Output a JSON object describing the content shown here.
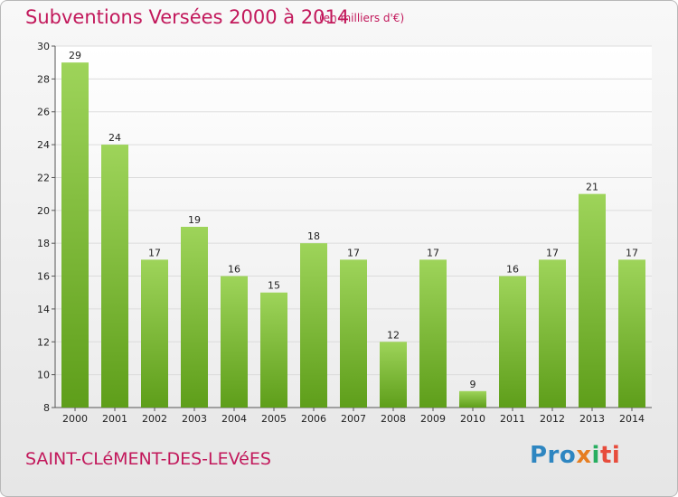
{
  "chart_data": {
    "type": "bar",
    "title": "Subventions Versées 2000 à 2014",
    "subtitle": "(en milliers d'€)",
    "categories": [
      "2000",
      "2001",
      "2002",
      "2003",
      "2004",
      "2005",
      "2006",
      "2007",
      "2008",
      "2009",
      "2010",
      "2011",
      "2012",
      "2013",
      "2014"
    ],
    "values": [
      29,
      24,
      17,
      19,
      16,
      15,
      18,
      17,
      12,
      17,
      9,
      16,
      17,
      21,
      17
    ],
    "ylim": [
      8,
      30
    ],
    "yticks": [
      8,
      10,
      12,
      14,
      16,
      18,
      20,
      22,
      24,
      26,
      28,
      30
    ],
    "grid": true,
    "bar_color_top": "#9ed45a",
    "bar_color_bottom": "#5e9e1a"
  },
  "footer": {
    "town": "SAINT-CLéMENT-DES-LEVéES",
    "logo_parts": [
      "Pro",
      "x",
      "i",
      "ti"
    ]
  }
}
